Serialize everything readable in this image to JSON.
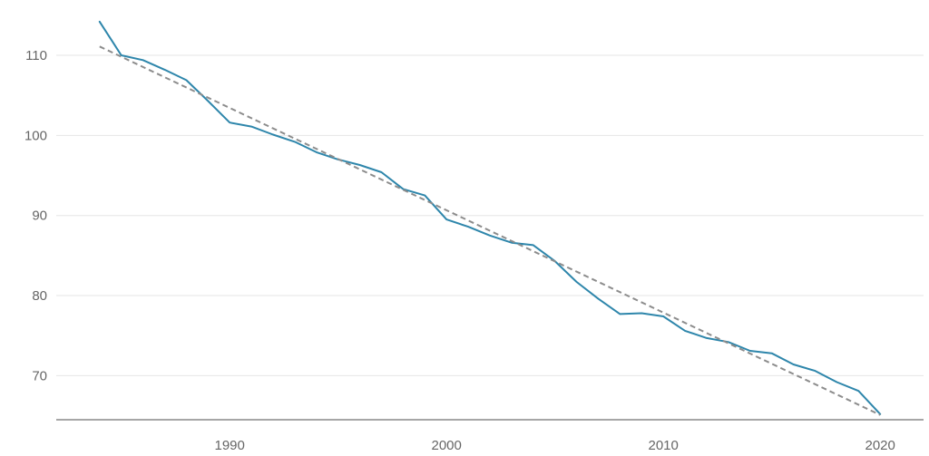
{
  "chart_data": {
    "type": "line",
    "title": "",
    "xlabel": "",
    "ylabel": "",
    "xlim": [
      1982,
      2022
    ],
    "ylim": [
      64.5,
      116
    ],
    "x_ticks": [
      1990,
      2000,
      2010,
      2020
    ],
    "y_ticks": [
      70,
      80,
      90,
      100,
      110
    ],
    "grid": "horizontal",
    "legend": "none",
    "series": [
      {
        "style": "solid",
        "color": "#2e86ab",
        "x": [
          1984,
          1985,
          1986,
          1987,
          1988,
          1989,
          1990,
          1991,
          1992,
          1993,
          1994,
          1995,
          1996,
          1997,
          1998,
          1999,
          2000,
          2001,
          2002,
          2003,
          2004,
          2005,
          2006,
          2007,
          2008,
          2009,
          2010,
          2011,
          2012,
          2013,
          2014,
          2015,
          2016,
          2017,
          2018,
          2019,
          2020
        ],
        "values": [
          114.2,
          110.0,
          109.4,
          108.2,
          106.9,
          104.3,
          101.6,
          101.1,
          100.1,
          99.2,
          97.9,
          97.0,
          96.3,
          95.4,
          93.3,
          92.5,
          89.5,
          88.6,
          87.5,
          86.6,
          86.3,
          84.3,
          81.7,
          79.6,
          77.7,
          77.8,
          77.4,
          75.6,
          74.7,
          74.2,
          73.1,
          72.8,
          71.4,
          70.6,
          69.2,
          68.1,
          65.2
        ]
      },
      {
        "style": "dashed",
        "color": "#8c8c8c",
        "x": [
          1984,
          2020
        ],
        "values": [
          111.1,
          65.1
        ]
      }
    ]
  }
}
